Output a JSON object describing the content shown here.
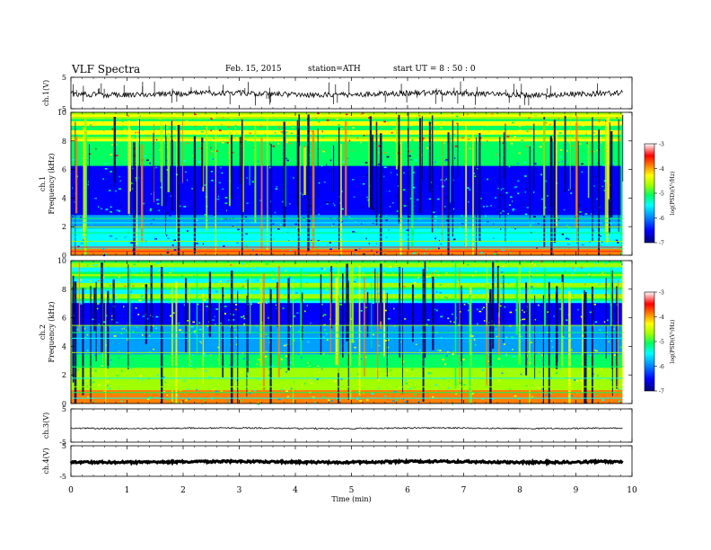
{
  "header": {
    "title": "VLF Spectra",
    "date": "Feb. 15, 2015",
    "station": "station=ATH",
    "start": "start  UT =   8 : 50 : 0"
  },
  "chart_data": [
    {
      "type": "line",
      "ylabel": "ch.1(V)",
      "ylim": [
        -5,
        5
      ],
      "yticks": [
        "5",
        "-5"
      ],
      "description_level": "noisy waveform centered near 0 V"
    },
    {
      "type": "heatmap",
      "ylabel_top": "ch.1",
      "ylabel": "Frequency  (kHz)",
      "ylim": [
        0,
        10
      ],
      "yticks": [
        "0",
        "2",
        "4",
        "6",
        "8",
        "10"
      ],
      "colorbar": {
        "label": "log(PSD)(V²/Hz)",
        "ticks": [
          "-3",
          "-4",
          "-5",
          "-6",
          "-7"
        ],
        "range": [
          -7,
          -3
        ]
      }
    },
    {
      "type": "heatmap",
      "ylabel_top": "ch.2",
      "ylabel": "Frequency  (kHz)",
      "ylim": [
        0,
        10
      ],
      "yticks": [
        "0",
        "2",
        "4",
        "6",
        "8",
        "10"
      ],
      "colorbar": {
        "label": "log(PSD)(V²/Hz)",
        "ticks": [
          "-3",
          "-4",
          "-5",
          "-6",
          "-7"
        ],
        "range": [
          -7,
          -3
        ]
      }
    },
    {
      "type": "line",
      "ylabel": "ch.3(V)",
      "ylim": [
        -5,
        5
      ],
      "yticks": [
        "5",
        "-5"
      ]
    },
    {
      "type": "line",
      "ylabel": "ch.4(V)",
      "ylim": [
        -5,
        5
      ],
      "yticks": [
        "5",
        "-5"
      ]
    }
  ],
  "xaxis": {
    "label": "Time  (min)",
    "ticks": [
      "0",
      "1",
      "2",
      "3",
      "4",
      "5",
      "6",
      "7",
      "8",
      "9",
      "10"
    ],
    "range": [
      0,
      10
    ],
    "data_end": 9.83
  },
  "colors": {
    "colormap": [
      "#00007a",
      "#0000ff",
      "#00a0ff",
      "#00ffff",
      "#00ff60",
      "#a0ff00",
      "#ffff00",
      "#ff8000",
      "#ff0000",
      "#ffffff"
    ]
  }
}
